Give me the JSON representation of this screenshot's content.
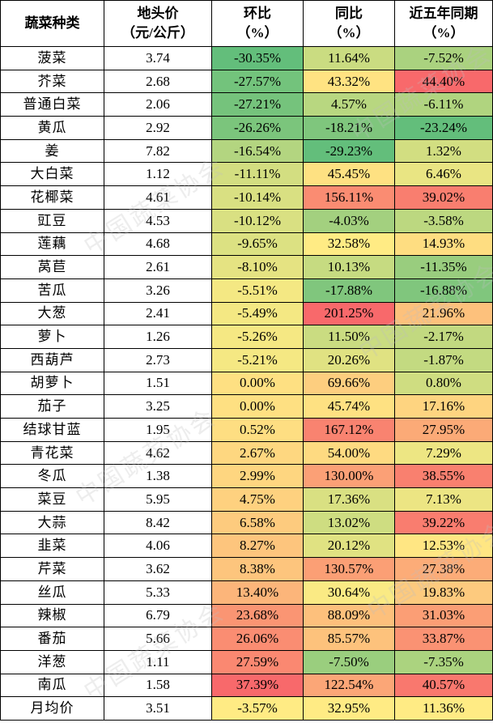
{
  "headers": [
    {
      "line1": "蔬菜种类",
      "line2": ""
    },
    {
      "line1": "地头价",
      "line2": "（元/公斤）"
    },
    {
      "line1": "环比",
      "line2": "（%）"
    },
    {
      "line1": "同比",
      "line2": "（%）"
    },
    {
      "line1": "近五年同期",
      "line2": "（%）"
    }
  ],
  "rows": [
    {
      "name": "菠菜",
      "price": "3.74",
      "mom": "-30.35%",
      "yoy": "11.64%",
      "five": "-7.52%"
    },
    {
      "name": "芥菜",
      "price": "2.68",
      "mom": "-27.57%",
      "yoy": "43.32%",
      "five": "44.40%"
    },
    {
      "name": "普通白菜",
      "price": "2.06",
      "mom": "-27.21%",
      "yoy": "4.57%",
      "five": "-6.11%"
    },
    {
      "name": "黄瓜",
      "price": "2.92",
      "mom": "-26.26%",
      "yoy": "-18.21%",
      "five": "-23.24%"
    },
    {
      "name": "姜",
      "price": "7.82",
      "mom": "-16.54%",
      "yoy": "-29.23%",
      "five": "1.32%"
    },
    {
      "name": "大白菜",
      "price": "1.12",
      "mom": "-11.11%",
      "yoy": "45.45%",
      "five": "6.46%"
    },
    {
      "name": "花椰菜",
      "price": "4.61",
      "mom": "-10.14%",
      "yoy": "156.11%",
      "five": "39.02%"
    },
    {
      "name": "豇豆",
      "price": "4.53",
      "mom": "-10.12%",
      "yoy": "-4.03%",
      "five": "-3.58%"
    },
    {
      "name": "莲藕",
      "price": "4.68",
      "mom": "-9.65%",
      "yoy": "32.58%",
      "five": "14.93%"
    },
    {
      "name": "莴苣",
      "price": "2.61",
      "mom": "-8.10%",
      "yoy": "10.13%",
      "five": "-11.35%"
    },
    {
      "name": "苦瓜",
      "price": "3.26",
      "mom": "-5.51%",
      "yoy": "-17.88%",
      "five": "-16.88%"
    },
    {
      "name": "大葱",
      "price": "2.41",
      "mom": "-5.49%",
      "yoy": "201.25%",
      "five": "21.96%"
    },
    {
      "name": "萝卜",
      "price": "1.26",
      "mom": "-5.26%",
      "yoy": "11.50%",
      "five": "-2.17%"
    },
    {
      "name": "西葫芦",
      "price": "2.73",
      "mom": "-5.21%",
      "yoy": "20.26%",
      "five": "-1.87%"
    },
    {
      "name": "胡萝卜",
      "price": "1.51",
      "mom": "0.00%",
      "yoy": "69.66%",
      "five": "0.80%"
    },
    {
      "name": "茄子",
      "price": "3.25",
      "mom": "0.00%",
      "yoy": "45.74%",
      "five": "17.16%"
    },
    {
      "name": "结球甘蓝",
      "price": "1.95",
      "mom": "0.52%",
      "yoy": "167.12%",
      "five": "27.95%"
    },
    {
      "name": "青花菜",
      "price": "4.62",
      "mom": "2.67%",
      "yoy": "54.00%",
      "five": "7.29%"
    },
    {
      "name": "冬瓜",
      "price": "1.38",
      "mom": "2.99%",
      "yoy": "130.00%",
      "five": "38.55%"
    },
    {
      "name": "菜豆",
      "price": "5.95",
      "mom": "4.75%",
      "yoy": "17.36%",
      "five": "7.13%"
    },
    {
      "name": "大蒜",
      "price": "8.42",
      "mom": "6.58%",
      "yoy": "13.02%",
      "five": "39.22%"
    },
    {
      "name": "韭菜",
      "price": "4.06",
      "mom": "8.27%",
      "yoy": "20.12%",
      "five": "12.53%"
    },
    {
      "name": "芹菜",
      "price": "3.62",
      "mom": "8.38%",
      "yoy": "130.57%",
      "five": "27.38%"
    },
    {
      "name": "丝瓜",
      "price": "5.33",
      "mom": "13.40%",
      "yoy": "30.64%",
      "five": "19.83%"
    },
    {
      "name": "辣椒",
      "price": "6.79",
      "mom": "23.68%",
      "yoy": "88.09%",
      "five": "31.03%"
    },
    {
      "name": "番茄",
      "price": "5.66",
      "mom": "26.06%",
      "yoy": "85.57%",
      "five": "33.87%"
    },
    {
      "name": "洋葱",
      "price": "1.11",
      "mom": "27.59%",
      "yoy": "-7.50%",
      "five": "-7.35%"
    },
    {
      "name": "南瓜",
      "price": "1.58",
      "mom": "37.39%",
      "yoy": "122.54%",
      "five": "40.57%"
    },
    {
      "name": "月均价",
      "price": "3.51",
      "mom": "-3.57%",
      "yoy": "32.95%",
      "five": "11.36%"
    }
  ],
  "colors": {
    "low": "#63be7b",
    "mid": "#ffeb84",
    "high": "#f8696b"
  },
  "watermark": "中国蔬菜协会"
}
